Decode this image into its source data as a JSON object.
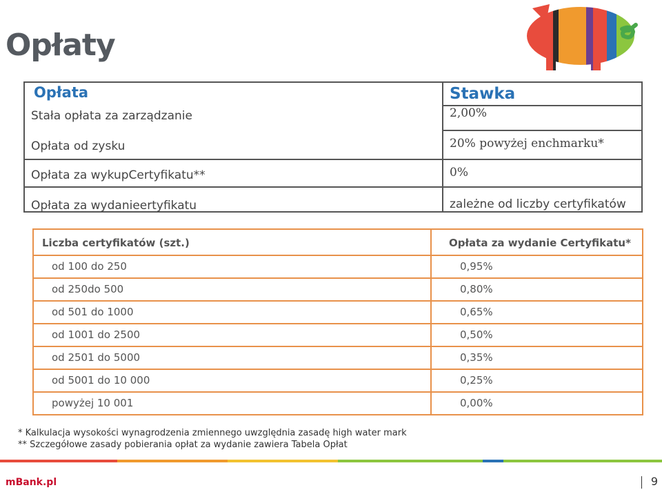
{
  "slide": {
    "title": "Opłaty",
    "brand": "mBank.pl",
    "page": "9"
  },
  "fees_table": {
    "col1_header": "Opłata",
    "col2_header": "Stawka",
    "rows": [
      {
        "fee": "Stała opłata za zarządzanie",
        "rate": "2,00%"
      },
      {
        "fee": "Opłata od zysku",
        "rate": "20% powyżej enchmarku*"
      },
      {
        "fee": "Opłata za wykupCertyfikatu**",
        "rate": "0%"
      },
      {
        "fee": "Opłata za wydanieertyfikatu",
        "rate": "zależne od liczby certyfikatów"
      }
    ]
  },
  "cert_table": {
    "col1_header": "Liczba certyfikatów (szt.)",
    "col2_header": "Opłata za wydanie Certyfikatu*",
    "rows": [
      {
        "range": "od 100 do 250",
        "fee": "0,95%"
      },
      {
        "range": "od 250do 500",
        "fee": "0,80%"
      },
      {
        "range": "od 501 do 1000",
        "fee": "0,65%"
      },
      {
        "range": "od 1001 do 2500",
        "fee": "0,50%"
      },
      {
        "range": "od 2501 do 5000",
        "fee": "0,35%"
      },
      {
        "range": "od 5001 do 10 000",
        "fee": "0,25%"
      },
      {
        "range": "powyżej 10 001",
        "fee": "0,00%"
      }
    ]
  },
  "footnotes": [
    "* Kalkulacja wysokości wynagrodzenia zmiennego uwzględnia zasadę high water mark",
    "** Szczegółowe zasady pobierania opłat za wydanie zawiera Tabela Opłat"
  ],
  "colors": {
    "header_blue": "#2a72b5",
    "orange_border": "#e8914a",
    "brand_red": "#c8102e",
    "stripe": [
      "#e84c3d",
      "#f09a2e",
      "#f2c230",
      "#8cc63f",
      "#2a72b5",
      "#9b59b6"
    ]
  }
}
